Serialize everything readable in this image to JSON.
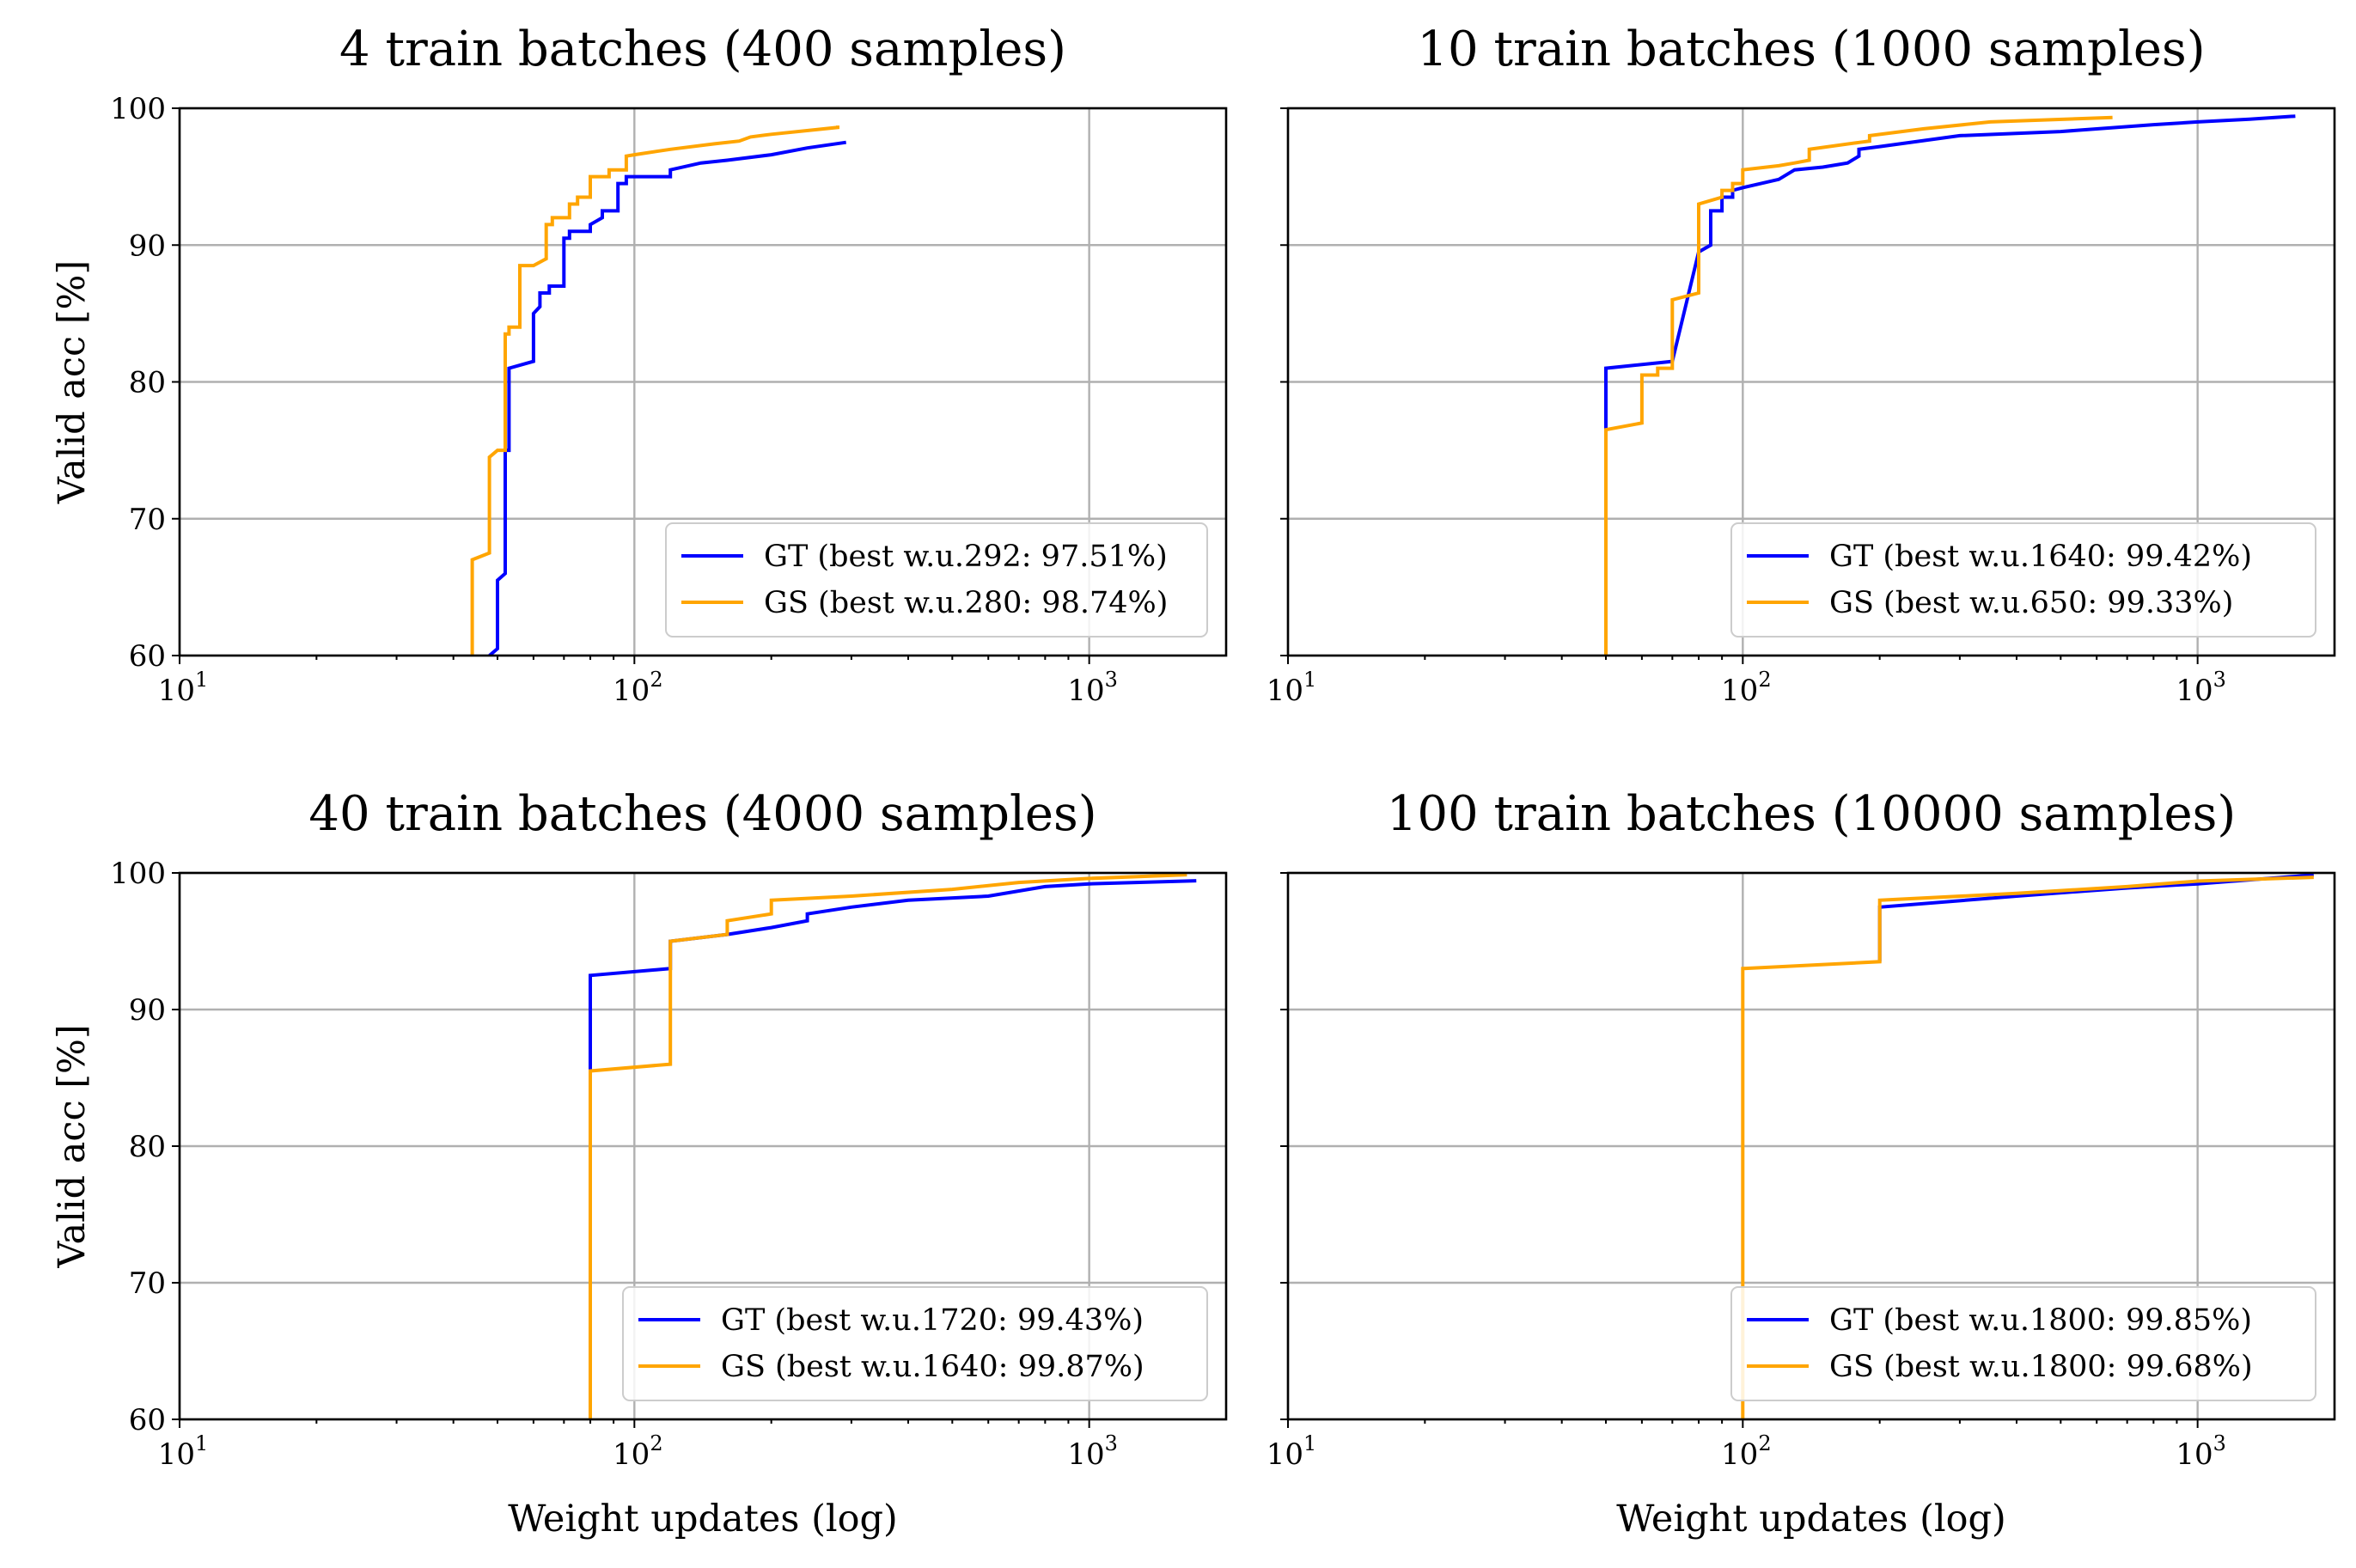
{
  "chart_data": [
    {
      "type": "line",
      "title": "4 train batches (400 samples)",
      "xlabel": "",
      "ylabel": "Valid acc [%]",
      "xscale": "log",
      "xlim": [
        10,
        2000
      ],
      "ylim": [
        60,
        100
      ],
      "grid": true,
      "legend_location": "lower-right",
      "x_ticks": [
        {
          "base": "10",
          "exp": "1"
        },
        {
          "base": "10",
          "exp": "2"
        },
        {
          "base": "10",
          "exp": "3"
        }
      ],
      "y_ticks": [
        "60",
        "70",
        "80",
        "90",
        "100"
      ],
      "series": [
        {
          "name": "GT",
          "label": "GT (best w.u.292: 97.51%)",
          "color": "#0000ff",
          "x": [
            48,
            50,
            50,
            52,
            52,
            53,
            53,
            60,
            60,
            62,
            62,
            65,
            65,
            70,
            70,
            72,
            72,
            80,
            80,
            85,
            85,
            92,
            92,
            96,
            96,
            120,
            120,
            140,
            160,
            200,
            240,
            292
          ],
          "y": [
            60,
            60.5,
            65.5,
            66,
            75,
            75,
            81,
            81.5,
            85,
            85.5,
            86.5,
            86.5,
            87,
            87,
            90.5,
            90.5,
            91,
            91,
            91.5,
            92,
            92.5,
            92.5,
            94.5,
            94.5,
            95,
            95,
            95.5,
            96,
            96.2,
            96.6,
            97.1,
            97.51
          ]
        },
        {
          "name": "GS",
          "label": "GS (best w.u.280: 98.74%)",
          "color": "#ffa500",
          "x": [
            44,
            44,
            48,
            48,
            50,
            50,
            52,
            52,
            53,
            53,
            56,
            56,
            60,
            60,
            64,
            64,
            66,
            66,
            72,
            72,
            75,
            75,
            80,
            80,
            88,
            88,
            96,
            96,
            100,
            120,
            150,
            170,
            180,
            200,
            280,
            280
          ],
          "y": [
            60,
            67,
            67.5,
            74.5,
            75,
            75,
            75,
            83.5,
            83.5,
            84,
            84,
            88.5,
            88.5,
            88.5,
            89,
            91.5,
            91.5,
            92,
            92,
            93,
            93,
            93.5,
            93.5,
            95,
            95,
            95.5,
            95.5,
            96.5,
            96.6,
            97,
            97.4,
            97.6,
            97.9,
            98.1,
            98.6,
            98.74
          ]
        }
      ]
    },
    {
      "type": "line",
      "title": "10 train batches (1000 samples)",
      "xlabel": "",
      "ylabel": "",
      "xscale": "log",
      "xlim": [
        10,
        2000
      ],
      "ylim": [
        60,
        100
      ],
      "grid": true,
      "legend_location": "lower-right",
      "x_ticks": [
        {
          "base": "10",
          "exp": "1"
        },
        {
          "base": "10",
          "exp": "2"
        },
        {
          "base": "10",
          "exp": "3"
        }
      ],
      "y_ticks": [],
      "series": [
        {
          "name": "GT",
          "label": "GT (best w.u.1640: 99.42%)",
          "color": "#0000ff",
          "x": [
            50,
            50,
            70,
            70,
            80,
            80,
            85,
            85,
            90,
            90,
            95,
            95,
            100,
            120,
            130,
            130,
            150,
            170,
            180,
            180,
            200,
            300,
            500,
            800,
            1000,
            1300,
            1640
          ],
          "y": [
            76.5,
            81,
            81.5,
            81.5,
            89.5,
            89.5,
            90,
            92.5,
            92.5,
            93.5,
            93.5,
            94,
            94.2,
            94.8,
            95.5,
            95.5,
            95.7,
            96,
            96.5,
            97,
            97.2,
            98,
            98.3,
            98.8,
            99,
            99.2,
            99.42
          ]
        },
        {
          "name": "GS",
          "label": "GS (best w.u.650: 99.33%)",
          "color": "#ffa500",
          "x": [
            50,
            50,
            60,
            60,
            65,
            65,
            70,
            70,
            80,
            80,
            90,
            90,
            95,
            95,
            100,
            100,
            120,
            130,
            140,
            140,
            180,
            190,
            190,
            250,
            350,
            650
          ],
          "y": [
            60,
            76.5,
            77,
            80.5,
            80.5,
            81,
            81,
            86,
            86.5,
            93,
            93.5,
            94,
            94,
            94.5,
            94.5,
            95.5,
            95.8,
            96,
            96.2,
            97,
            97.5,
            97.6,
            98,
            98.5,
            99,
            99.33
          ]
        }
      ]
    },
    {
      "type": "line",
      "title": "40 train batches (4000 samples)",
      "xlabel": "Weight updates (log)",
      "ylabel": "Valid acc [%]",
      "xscale": "log",
      "xlim": [
        10,
        2000
      ],
      "ylim": [
        60,
        100
      ],
      "grid": true,
      "legend_location": "lower-right",
      "x_ticks": [
        {
          "base": "10",
          "exp": "1"
        },
        {
          "base": "10",
          "exp": "2"
        },
        {
          "base": "10",
          "exp": "3"
        }
      ],
      "y_ticks": [
        "60",
        "70",
        "80",
        "90",
        "100"
      ],
      "series": [
        {
          "name": "GT",
          "label": "GT (best w.u.1720: 99.43%)",
          "color": "#0000ff",
          "x": [
            80,
            80,
            120,
            120,
            160,
            200,
            240,
            240,
            300,
            400,
            600,
            800,
            1000,
            1720
          ],
          "y": [
            85.5,
            92.5,
            93,
            95,
            95.5,
            96,
            96.5,
            97,
            97.5,
            98,
            98.3,
            99,
            99.2,
            99.43
          ]
        },
        {
          "name": "GS",
          "label": "GS (best w.u.1640: 99.87%)",
          "color": "#ffa500",
          "x": [
            80,
            80,
            120,
            120,
            160,
            160,
            200,
            200,
            300,
            500,
            700,
            1000,
            1640
          ],
          "y": [
            60,
            85.5,
            86,
            95,
            95.5,
            96.5,
            97,
            98,
            98.3,
            98.8,
            99.3,
            99.6,
            99.87
          ]
        }
      ]
    },
    {
      "type": "line",
      "title": "100 train batches (10000 samples)",
      "xlabel": "Weight updates (log)",
      "ylabel": "",
      "xscale": "log",
      "xlim": [
        10,
        2000
      ],
      "ylim": [
        60,
        100
      ],
      "grid": true,
      "legend_location": "lower-right",
      "x_ticks": [
        {
          "base": "10",
          "exp": "1"
        },
        {
          "base": "10",
          "exp": "2"
        },
        {
          "base": "10",
          "exp": "3"
        }
      ],
      "y_ticks": [],
      "series": [
        {
          "name": "GT",
          "label": "GT (best w.u.1800: 99.85%)",
          "color": "#0000ff",
          "x": [
            200,
            200,
            400,
            700,
            1000,
            1800
          ],
          "y": [
            93.5,
            97.5,
            98.3,
            98.9,
            99.2,
            99.85
          ]
        },
        {
          "name": "GS",
          "label": "GS (best w.u.1800: 99.68%)",
          "color": "#ffa500",
          "x": [
            100,
            100,
            200,
            200,
            400,
            700,
            1000,
            1800
          ],
          "y": [
            60,
            93,
            93.5,
            98,
            98.5,
            99,
            99.4,
            99.68
          ]
        }
      ]
    }
  ]
}
